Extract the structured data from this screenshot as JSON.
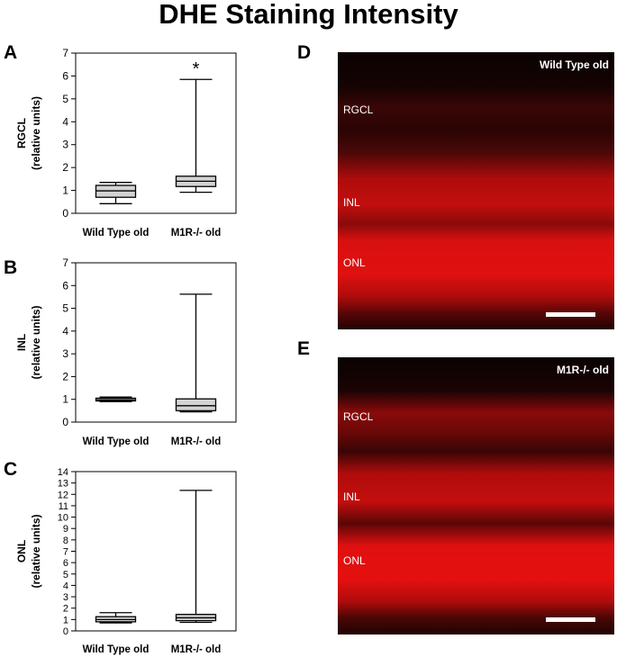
{
  "title": "DHE Staining Intensity",
  "panels": {
    "A": "A",
    "B": "B",
    "C": "C",
    "D": "D",
    "E": "E"
  },
  "chart_data": [
    {
      "type": "box",
      "panel": "A",
      "ylabel_line1": "RGCL",
      "ylabel_line2": "(relative units)",
      "ylim": [
        0,
        7
      ],
      "yticks": [
        0,
        1,
        2,
        3,
        4,
        5,
        6,
        7
      ],
      "categories": [
        "Wild Type old",
        "M1R-/- old"
      ],
      "boxes": [
        {
          "min": 0.42,
          "q1": 0.7,
          "median": 0.98,
          "q3": 1.22,
          "max": 1.35
        },
        {
          "min": 0.92,
          "q1": 1.17,
          "median": 1.4,
          "q3": 1.62,
          "max": 5.85
        }
      ],
      "annotation": "*"
    },
    {
      "type": "box",
      "panel": "B",
      "ylabel_line1": "INL",
      "ylabel_line2": "(relative units)",
      "ylim": [
        0,
        7
      ],
      "yticks": [
        0,
        1,
        2,
        3,
        4,
        5,
        6,
        7
      ],
      "categories": [
        "Wild Type old",
        "M1R-/- old"
      ],
      "boxes": [
        {
          "min": 0.9,
          "q1": 0.93,
          "median": 0.98,
          "q3": 1.05,
          "max": 1.1
        },
        {
          "min": 0.45,
          "q1": 0.5,
          "median": 0.72,
          "q3": 1.02,
          "max": 5.62
        }
      ],
      "annotation": ""
    },
    {
      "type": "box",
      "panel": "C",
      "ylabel_line1": "ONL",
      "ylabel_line2": "(relative units)",
      "ylim": [
        0,
        14
      ],
      "yticks": [
        0,
        1,
        2,
        3,
        4,
        5,
        6,
        7,
        8,
        9,
        10,
        11,
        12,
        13,
        14
      ],
      "categories": [
        "Wild Type old",
        "M1R-/- old"
      ],
      "boxes": [
        {
          "min": 0.7,
          "q1": 0.8,
          "median": 1.0,
          "q3": 1.25,
          "max": 1.6
        },
        {
          "min": 0.75,
          "q1": 0.9,
          "median": 1.15,
          "q3": 1.45,
          "max": 12.35
        }
      ],
      "annotation": ""
    }
  ],
  "micrographs": [
    {
      "panel": "D",
      "title": "Wild Type old",
      "labels": [
        "RGCL",
        "INL",
        "ONL"
      ]
    },
    {
      "panel": "E",
      "title": "M1R-/- old",
      "labels": [
        "RGCL",
        "INL",
        "ONL"
      ]
    }
  ],
  "colors": {
    "box_fill": "#d3d3d3",
    "stain_red": "#e81010",
    "background_dark": "#0b0202"
  }
}
